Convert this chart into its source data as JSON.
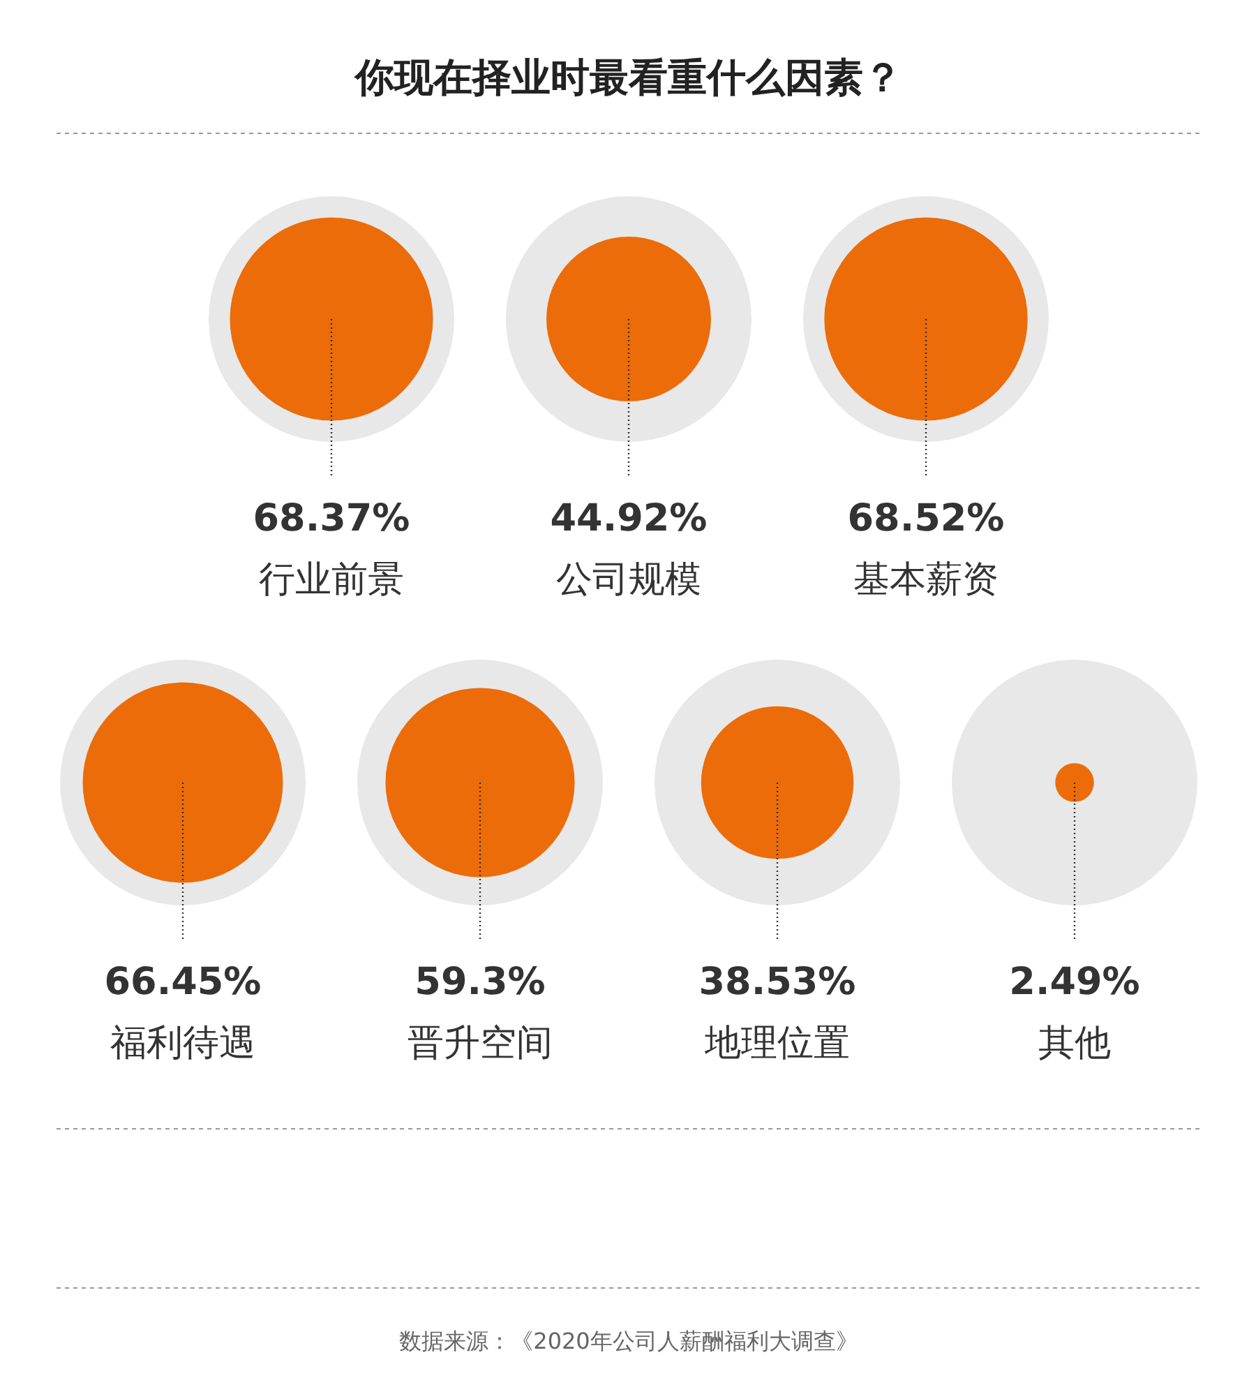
{
  "chart_data": {
    "type": "other",
    "title": "你现在择业时最看重什么因素？",
    "categories": [
      "行业前景",
      "公司规模",
      "基本薪资",
      "福利待遇",
      "晋升空间",
      "地理位置",
      "其他"
    ],
    "values": [
      68.37,
      44.92,
      68.52,
      66.45,
      59.3,
      38.53,
      2.49
    ],
    "value_labels": [
      "68.37%",
      "44.92%",
      "68.52%",
      "66.45%",
      "59.3%",
      "38.53%",
      "2.49%"
    ],
    "color": "#ec6c0a",
    "annotations": [
      "数据来源：《2020年公司人薪酬福利大调查》"
    ]
  }
}
